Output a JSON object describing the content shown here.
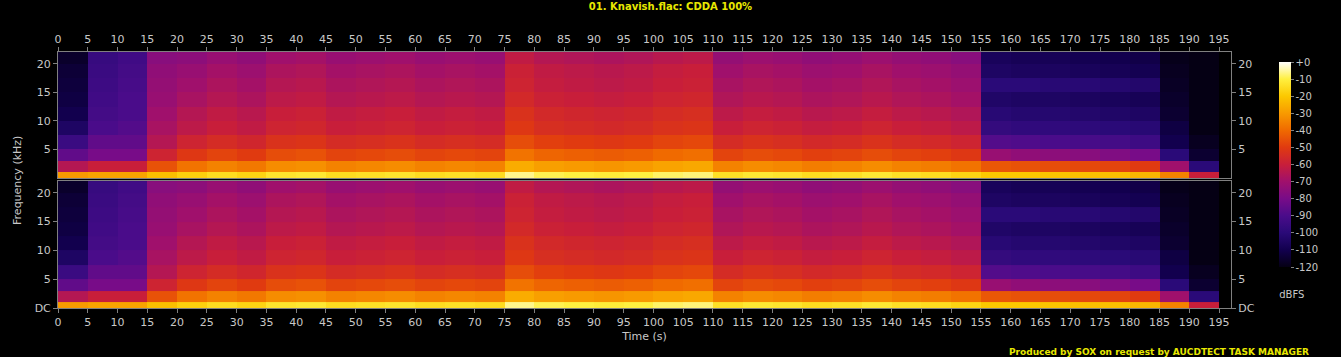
{
  "chart_data": [
    {
      "type": "heatmap",
      "title": "01. Knavish.flac: CDDA 100%",
      "ylabel": "Frequency (kHz)",
      "x": [
        0,
        5,
        10,
        15,
        20,
        25,
        30,
        35,
        40,
        45,
        50,
        55,
        60,
        65,
        70,
        75,
        80,
        85,
        90,
        95,
        100,
        105,
        110,
        115,
        120,
        125,
        130,
        135,
        140,
        145,
        150,
        155,
        160,
        165,
        170,
        175,
        180,
        185,
        190,
        195
      ],
      "y": [
        0,
        1,
        3,
        5,
        7.5,
        10,
        12.5,
        15,
        17.5,
        20,
        22.05
      ],
      "xlim": [
        0,
        197
      ],
      "ylim": [
        0,
        22.05
      ],
      "xticks": [
        0,
        5,
        10,
        15,
        20,
        25,
        30,
        35,
        40,
        45,
        50,
        55,
        60,
        65,
        70,
        75,
        80,
        85,
        90,
        95,
        100,
        105,
        110,
        115,
        120,
        125,
        130,
        135,
        140,
        145,
        150,
        155,
        160,
        165,
        170,
        175,
        180,
        185,
        190,
        195
      ],
      "yticks": [
        5,
        10,
        15,
        20
      ],
      "zlim": [
        -120,
        0
      ],
      "zticks": [
        {
          "value": 0,
          "label": "+0"
        },
        -10,
        -20,
        -30,
        -40,
        -50,
        -60,
        -70,
        -80,
        -90,
        -100,
        -110,
        -120
      ],
      "zlabel": "dBFS",
      "cells": [
        [
          -30,
          -28,
          -28,
          -22,
          -18,
          -15,
          -17,
          -13,
          -12,
          -15,
          -14,
          -13,
          -15,
          -14,
          -15,
          -6,
          -9,
          -10,
          -11,
          -10,
          -8,
          -7,
          -14,
          -12,
          -13,
          -15,
          -14,
          -12,
          -14,
          -15,
          -17,
          -20,
          -20,
          -21,
          -22,
          -22,
          -24,
          -35,
          -60
        ],
        [
          -65,
          -60,
          -60,
          -45,
          -38,
          -35,
          -37,
          -33,
          -32,
          -35,
          -34,
          -33,
          -35,
          -34,
          -35,
          -26,
          -29,
          -30,
          -31,
          -30,
          -28,
          -27,
          -35,
          -33,
          -34,
          -36,
          -35,
          -33,
          -35,
          -36,
          -38,
          -44,
          -45,
          -46,
          -47,
          -48,
          -50,
          -70,
          -100
        ],
        [
          -85,
          -80,
          -80,
          -58,
          -51,
          -48,
          -50,
          -46,
          -45,
          -48,
          -47,
          -46,
          -48,
          -47,
          -48,
          -38,
          -41,
          -42,
          -43,
          -42,
          -40,
          -39,
          -48,
          -46,
          -47,
          -49,
          -48,
          -46,
          -48,
          -49,
          -51,
          -72,
          -74,
          -75,
          -76,
          -78,
          -80,
          -100,
          -115
        ],
        [
          -95,
          -85,
          -85,
          -65,
          -58,
          -55,
          -57,
          -53,
          -52,
          -55,
          -54,
          -53,
          -55,
          -54,
          -55,
          -46,
          -49,
          -50,
          -51,
          -50,
          -48,
          -47,
          -55,
          -53,
          -54,
          -56,
          -55,
          -53,
          -55,
          -56,
          -58,
          -88,
          -89,
          -90,
          -91,
          -92,
          -94,
          -110,
          -118
        ],
        [
          -105,
          -90,
          -88,
          -68,
          -63,
          -60,
          -62,
          -58,
          -57,
          -60,
          -59,
          -58,
          -60,
          -59,
          -60,
          -51,
          -54,
          -55,
          -56,
          -55,
          -53,
          -52,
          -60,
          -58,
          -59,
          -61,
          -60,
          -58,
          -60,
          -61,
          -63,
          -97,
          -98,
          -98,
          -99,
          -100,
          -101,
          -112,
          -120
        ],
        [
          -110,
          -92,
          -90,
          -70,
          -65,
          -62,
          -64,
          -60,
          -59,
          -62,
          -61,
          -60,
          -62,
          -61,
          -62,
          -53,
          -56,
          -57,
          -58,
          -57,
          -55,
          -54,
          -63,
          -61,
          -62,
          -64,
          -63,
          -61,
          -63,
          -64,
          -66,
          -101,
          -102,
          -102,
          -103,
          -104,
          -105,
          -115,
          -120
        ],
        [
          -112,
          -93,
          -90,
          -72,
          -68,
          -65,
          -67,
          -63,
          -62,
          -65,
          -64,
          -63,
          -65,
          -64,
          -65,
          -56,
          -59,
          -60,
          -61,
          -60,
          -58,
          -57,
          -66,
          -64,
          -65,
          -67,
          -66,
          -64,
          -66,
          -67,
          -69,
          -104,
          -105,
          -105,
          -106,
          -107,
          -108,
          -116,
          -120
        ],
        [
          -113,
          -94,
          -91,
          -73,
          -70,
          -67,
          -69,
          -65,
          -64,
          -67,
          -66,
          -65,
          -67,
          -66,
          -67,
          -58,
          -61,
          -62,
          -63,
          -62,
          -60,
          -59,
          -68,
          -66,
          -67,
          -69,
          -68,
          -66,
          -68,
          -69,
          -71,
          -100,
          -100,
          -101,
          -101,
          -102,
          -103,
          -117,
          -120
        ],
        [
          -114,
          -95,
          -92,
          -74,
          -72,
          -69,
          -71,
          -67,
          -66,
          -69,
          -68,
          -67,
          -69,
          -68,
          -69,
          -59,
          -62,
          -63,
          -64,
          -63,
          -61,
          -60,
          -70,
          -68,
          -69,
          -71,
          -70,
          -68,
          -70,
          -71,
          -73,
          -105,
          -106,
          -106,
          -107,
          -108,
          -109,
          -118,
          -120
        ],
        [
          -116,
          -96,
          -93,
          -76,
          -75,
          -72,
          -74,
          -70,
          -69,
          -72,
          -71,
          -70,
          -72,
          -71,
          -72,
          -62,
          -65,
          -66,
          -67,
          -66,
          -64,
          -63,
          -73,
          -71,
          -72,
          -74,
          -73,
          -71,
          -73,
          -74,
          -76,
          -107,
          -108,
          -108,
          -109,
          -110,
          -111,
          -119,
          -120
        ]
      ]
    },
    {
      "type": "heatmap",
      "xlabel": "Time (s)",
      "annotations": [
        "Produced by SOX on request by AUCDTECT TASK MANAGER"
      ],
      "x": [
        0,
        5,
        10,
        15,
        20,
        25,
        30,
        35,
        40,
        45,
        50,
        55,
        60,
        65,
        70,
        75,
        80,
        85,
        90,
        95,
        100,
        105,
        110,
        115,
        120,
        125,
        130,
        135,
        140,
        145,
        150,
        155,
        160,
        165,
        170,
        175,
        180,
        185,
        190,
        195
      ],
      "y": [
        0,
        1,
        3,
        5,
        7.5,
        10,
        12.5,
        15,
        17.5,
        20,
        22.05
      ],
      "xlim": [
        0,
        197
      ],
      "ylim": [
        0,
        22.05
      ],
      "xticks": [
        0,
        5,
        10,
        15,
        20,
        25,
        30,
        35,
        40,
        45,
        50,
        55,
        60,
        65,
        70,
        75,
        80,
        85,
        90,
        95,
        100,
        105,
        110,
        115,
        120,
        125,
        130,
        135,
        140,
        145,
        150,
        155,
        160,
        165,
        170,
        175,
        180,
        185,
        190,
        195
      ],
      "yticks": [
        {
          "value": 0,
          "label": "DC"
        },
        5,
        10,
        15,
        20
      ],
      "cells": [
        [
          -30,
          -28,
          -28,
          -22,
          -18,
          -15,
          -17,
          -13,
          -12,
          -15,
          -14,
          -13,
          -15,
          -14,
          -15,
          -6,
          -9,
          -10,
          -11,
          -10,
          -8,
          -7,
          -14,
          -12,
          -13,
          -15,
          -14,
          -12,
          -14,
          -15,
          -17,
          -20,
          -20,
          -21,
          -22,
          -22,
          -24,
          -35,
          -60
        ],
        [
          -65,
          -60,
          -60,
          -45,
          -38,
          -35,
          -37,
          -33,
          -32,
          -35,
          -34,
          -33,
          -35,
          -34,
          -35,
          -26,
          -29,
          -30,
          -31,
          -30,
          -28,
          -27,
          -35,
          -33,
          -34,
          -36,
          -35,
          -33,
          -35,
          -36,
          -38,
          -44,
          -45,
          -46,
          -47,
          -48,
          -50,
          -70,
          -100
        ],
        [
          -85,
          -80,
          -80,
          -58,
          -51,
          -48,
          -50,
          -46,
          -45,
          -48,
          -47,
          -46,
          -48,
          -47,
          -48,
          -38,
          -41,
          -42,
          -43,
          -42,
          -40,
          -39,
          -48,
          -46,
          -47,
          -49,
          -48,
          -46,
          -48,
          -49,
          -51,
          -72,
          -74,
          -75,
          -76,
          -78,
          -80,
          -100,
          -115
        ],
        [
          -95,
          -85,
          -85,
          -65,
          -58,
          -55,
          -57,
          -53,
          -52,
          -55,
          -54,
          -53,
          -55,
          -54,
          -55,
          -46,
          -49,
          -50,
          -51,
          -50,
          -48,
          -47,
          -55,
          -53,
          -54,
          -56,
          -55,
          -53,
          -55,
          -56,
          -58,
          -88,
          -89,
          -90,
          -91,
          -92,
          -94,
          -110,
          -118
        ],
        [
          -105,
          -90,
          -88,
          -68,
          -63,
          -60,
          -62,
          -58,
          -57,
          -60,
          -59,
          -58,
          -60,
          -59,
          -60,
          -51,
          -54,
          -55,
          -56,
          -55,
          -53,
          -52,
          -60,
          -58,
          -59,
          -61,
          -60,
          -58,
          -60,
          -61,
          -63,
          -97,
          -98,
          -98,
          -99,
          -100,
          -101,
          -112,
          -120
        ],
        [
          -110,
          -92,
          -90,
          -70,
          -65,
          -62,
          -64,
          -60,
          -59,
          -62,
          -61,
          -60,
          -62,
          -61,
          -62,
          -53,
          -56,
          -57,
          -58,
          -57,
          -55,
          -54,
          -63,
          -61,
          -62,
          -64,
          -63,
          -61,
          -63,
          -64,
          -66,
          -101,
          -102,
          -102,
          -103,
          -104,
          -105,
          -115,
          -120
        ],
        [
          -112,
          -93,
          -90,
          -72,
          -68,
          -65,
          -67,
          -63,
          -62,
          -65,
          -64,
          -63,
          -65,
          -64,
          -65,
          -56,
          -59,
          -60,
          -61,
          -60,
          -58,
          -57,
          -66,
          -64,
          -65,
          -67,
          -66,
          -64,
          -66,
          -67,
          -69,
          -104,
          -105,
          -105,
          -106,
          -107,
          -108,
          -116,
          -120
        ],
        [
          -113,
          -94,
          -91,
          -73,
          -70,
          -67,
          -69,
          -65,
          -64,
          -67,
          -66,
          -65,
          -67,
          -66,
          -67,
          -58,
          -61,
          -62,
          -63,
          -62,
          -60,
          -59,
          -68,
          -66,
          -67,
          -69,
          -68,
          -66,
          -68,
          -69,
          -71,
          -100,
          -100,
          -101,
          -101,
          -102,
          -103,
          -117,
          -120
        ],
        [
          -114,
          -95,
          -92,
          -74,
          -72,
          -69,
          -71,
          -67,
          -66,
          -69,
          -68,
          -67,
          -69,
          -68,
          -69,
          -59,
          -62,
          -63,
          -64,
          -63,
          -61,
          -60,
          -70,
          -68,
          -69,
          -71,
          -70,
          -68,
          -70,
          -71,
          -73,
          -105,
          -106,
          -106,
          -107,
          -108,
          -109,
          -118,
          -120
        ],
        [
          -116,
          -96,
          -93,
          -76,
          -75,
          -72,
          -74,
          -70,
          -69,
          -72,
          -71,
          -70,
          -72,
          -71,
          -72,
          -62,
          -65,
          -66,
          -67,
          -66,
          -64,
          -63,
          -73,
          -71,
          -72,
          -74,
          -73,
          -71,
          -73,
          -74,
          -76,
          -107,
          -108,
          -108,
          -109,
          -110,
          -111,
          -119,
          -120
        ]
      ]
    }
  ]
}
